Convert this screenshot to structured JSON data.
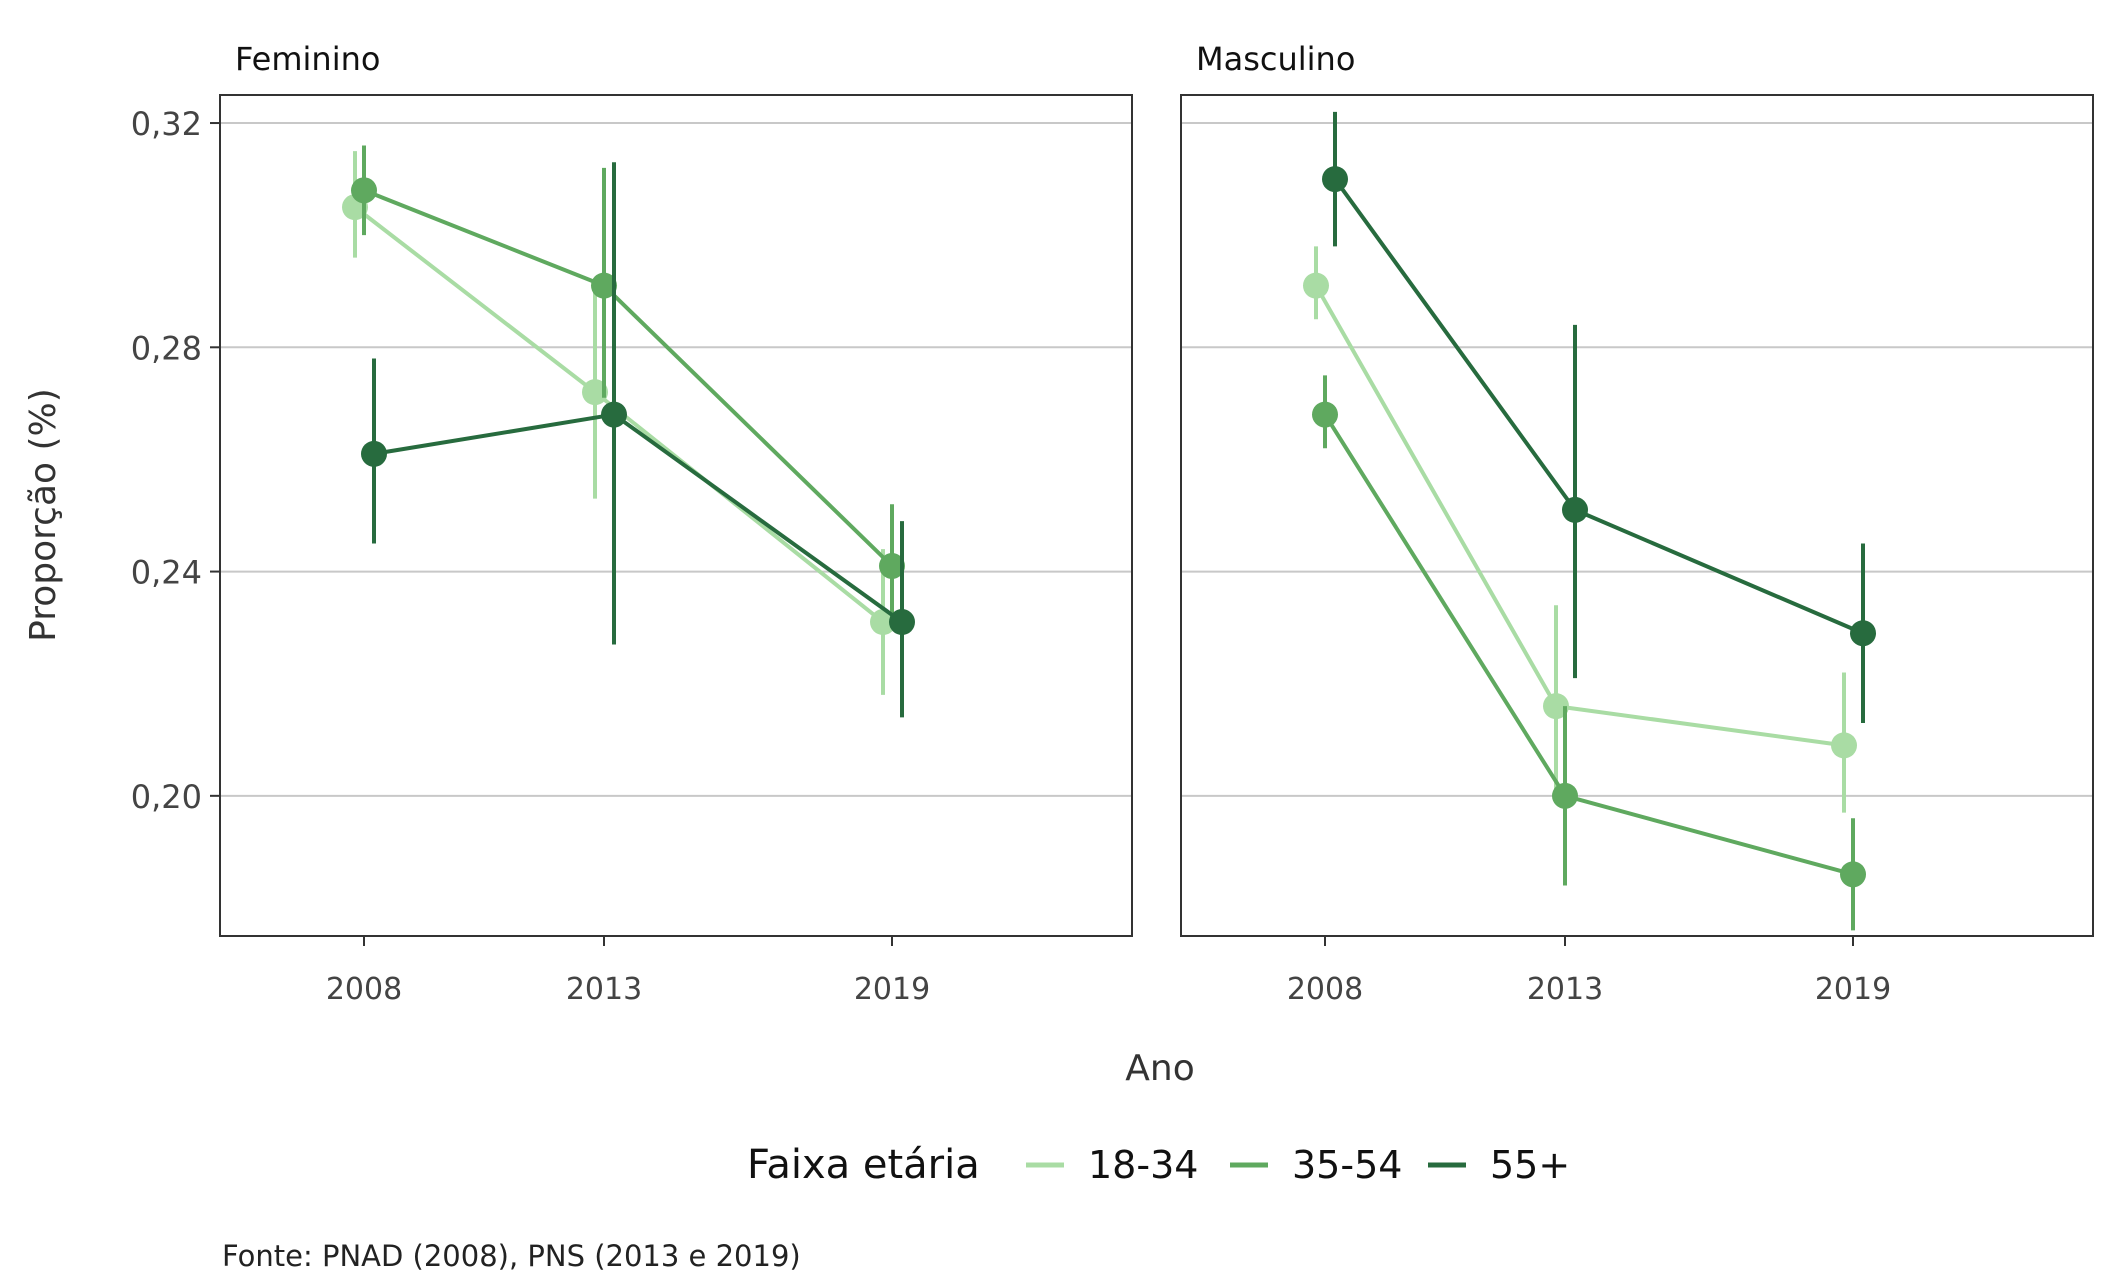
{
  "chart_data": {
    "type": "line",
    "x": [
      2008,
      2013,
      2019
    ],
    "xlabel": "Ano",
    "ylabel": "Proporção (%)",
    "ylim": [
      0.175,
      0.325
    ],
    "yticks": [
      {
        "value": 0.2,
        "label": "0,20"
      },
      {
        "value": 0.24,
        "label": "0,24"
      },
      {
        "value": 0.28,
        "label": "0,28"
      },
      {
        "value": 0.32,
        "label": "0,32"
      }
    ],
    "xtick_labels": [
      "2008",
      "2013",
      "2019"
    ],
    "grid": "horizontal",
    "error_bars": true,
    "legend": {
      "title": "Faixa etária",
      "placement": "bottom"
    },
    "series_styles": [
      {
        "name": "18-34",
        "color": "#a9dca4"
      },
      {
        "name": "35-54",
        "color": "#5fa95f"
      },
      {
        "name": "55+",
        "color": "#276b3e"
      }
    ],
    "panels": [
      {
        "title": "Feminino",
        "series": [
          {
            "name": "18-34",
            "values": [
              0.305,
              0.272,
              0.231
            ],
            "lower": [
              0.296,
              0.253,
              0.218
            ],
            "upper": [
              0.315,
              0.291,
              0.244
            ]
          },
          {
            "name": "35-54",
            "values": [
              0.308,
              0.291,
              0.241
            ],
            "lower": [
              0.3,
              0.271,
              0.23
            ],
            "upper": [
              0.316,
              0.312,
              0.252
            ]
          },
          {
            "name": "55+",
            "values": [
              0.261,
              0.268,
              0.231
            ],
            "lower": [
              0.245,
              0.227,
              0.214
            ],
            "upper": [
              0.278,
              0.313,
              0.249
            ]
          }
        ]
      },
      {
        "title": "Masculino",
        "series": [
          {
            "name": "18-34",
            "values": [
              0.291,
              0.216,
              0.209
            ],
            "lower": [
              0.285,
              0.199,
              0.197
            ],
            "upper": [
              0.298,
              0.234,
              0.222
            ]
          },
          {
            "name": "35-54",
            "values": [
              0.268,
              0.2,
              0.186
            ],
            "lower": [
              0.262,
              0.184,
              0.176
            ],
            "upper": [
              0.275,
              0.216,
              0.196
            ]
          },
          {
            "name": "55+",
            "values": [
              0.31,
              0.251,
              0.229
            ],
            "lower": [
              0.298,
              0.221,
              0.213
            ],
            "upper": [
              0.322,
              0.284,
              0.245
            ]
          }
        ]
      }
    ]
  },
  "source": "Fonte: PNAD (2008), PNS (2013 e 2019)"
}
